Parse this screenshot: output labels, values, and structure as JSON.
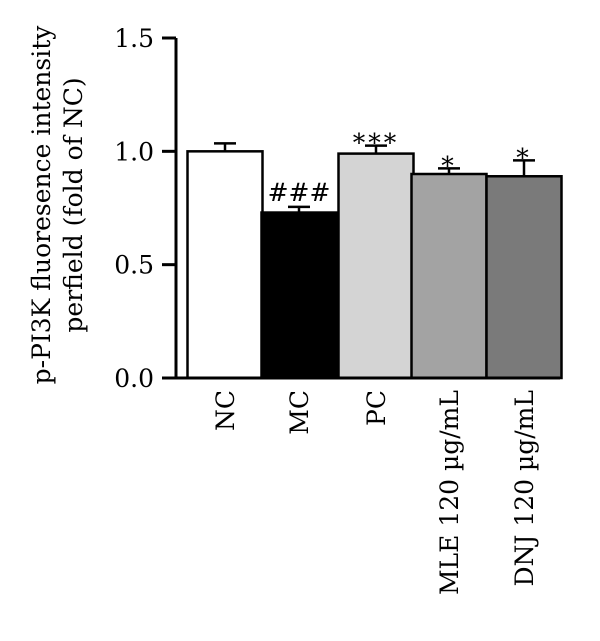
{
  "chart_data": {
    "type": "bar",
    "ylabel_lines": [
      "p-PI3K fluoresence intensity",
      "perfield (fold of NC)"
    ],
    "xlabel": "",
    "ylim": [
      0,
      1.5
    ],
    "yticks": [
      0.0,
      0.5,
      1.0,
      1.5
    ],
    "ytick_labels": [
      "0.0",
      "0.5",
      "1.0",
      "1.5"
    ],
    "grid": false,
    "legend": "none",
    "categories": [
      "NC",
      "MC",
      "PC",
      "MLE 120 µg/mL",
      "DNJ 120 µg/mL"
    ],
    "values": [
      1.0,
      0.73,
      0.99,
      0.9,
      0.89
    ],
    "errors": [
      0.035,
      0.025,
      0.035,
      0.025,
      0.07
    ],
    "annotations": [
      "",
      "###",
      "***",
      "*",
      "*"
    ],
    "colors": [
      "#ffffff",
      "#000000",
      "#d4d4d4",
      "#a3a3a3",
      "#7a7a7a"
    ]
  }
}
